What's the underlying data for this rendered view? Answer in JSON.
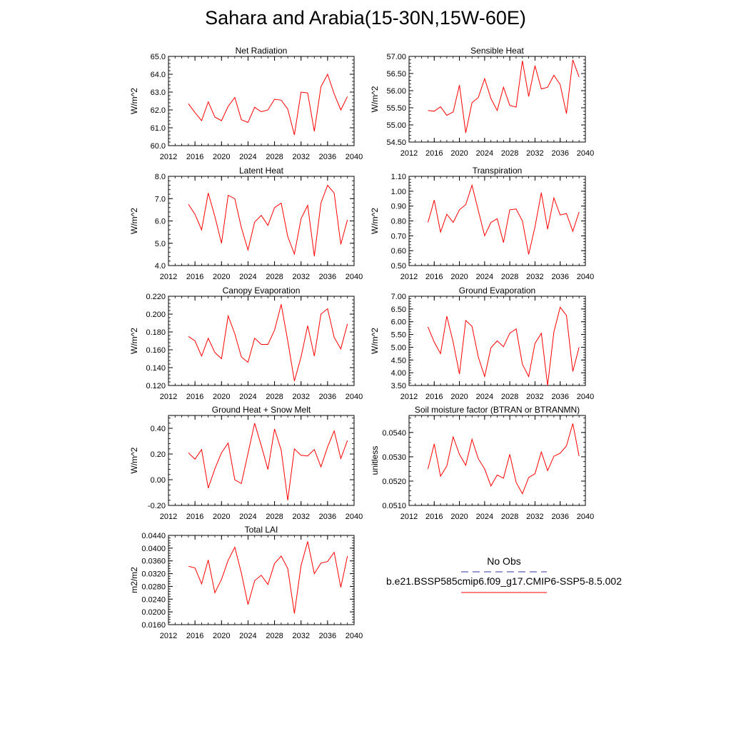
{
  "figure_title": "Sahara and Arabia(15-30N,15W-60E)",
  "legend": {
    "obs_label": "No Obs",
    "obs_color": "#3333aa",
    "model_label": "b.e21.BSSP585cmip6.f09_g17.CMIP6-SSP5-8.5.002",
    "model_color": "#ff0000"
  },
  "chart_data": [
    {
      "type": "line",
      "title": "Net Radiation",
      "ylabel": "W/m^2",
      "xlim": [
        2012,
        2040
      ],
      "x_ticks": [
        2012,
        2016,
        2020,
        2024,
        2028,
        2032,
        2036,
        2040
      ],
      "x_ticks_labels": [
        "2012",
        "2016",
        "2020",
        "2024",
        "2028",
        "2032",
        "2036",
        "2040"
      ],
      "ylim": [
        60.0,
        65.0
      ],
      "y_ticks": [
        60.0,
        61.0,
        62.0,
        63.0,
        64.0,
        65.0
      ],
      "y_ticks_labels": [
        "60.0",
        "61.0",
        "62.0",
        "63.0",
        "64.0",
        "65.0"
      ],
      "series": [
        {
          "x": [
            2015,
            2016,
            2017,
            2018,
            2019,
            2020,
            2021,
            2022,
            2023,
            2024,
            2025,
            2026,
            2027,
            2028,
            2029,
            2030,
            2031,
            2032,
            2033,
            2034,
            2035,
            2036,
            2037,
            2038,
            2039
          ],
          "values": [
            62.35,
            61.85,
            61.4,
            62.45,
            61.6,
            61.4,
            62.2,
            62.7,
            61.45,
            61.3,
            62.15,
            61.9,
            62.0,
            62.6,
            62.55,
            62.05,
            60.6,
            63.0,
            62.95,
            60.8,
            63.3,
            64.0,
            62.9,
            62.0,
            62.75
          ]
        }
      ]
    },
    {
      "type": "line",
      "title": "Sensible Heat",
      "ylabel": "W/m^2",
      "xlim": [
        2012,
        2040
      ],
      "x_ticks": [
        2012,
        2016,
        2020,
        2024,
        2028,
        2032,
        2036,
        2040
      ],
      "x_ticks_labels": [
        "2012",
        "2016",
        "2020",
        "2024",
        "2028",
        "2032",
        "2036",
        "2040"
      ],
      "ylim": [
        54.5,
        57.0
      ],
      "y_ticks": [
        54.5,
        55.0,
        55.5,
        56.0,
        56.5,
        57.0
      ],
      "y_ticks_labels": [
        "54.50",
        "55.00",
        "55.50",
        "56.00",
        "56.50",
        "57.00"
      ],
      "series": [
        {
          "x": [
            2015,
            2016,
            2017,
            2018,
            2019,
            2020,
            2021,
            2022,
            2023,
            2024,
            2025,
            2026,
            2027,
            2028,
            2029,
            2030,
            2031,
            2032,
            2033,
            2034,
            2035,
            2036,
            2037,
            2038,
            2039
          ],
          "values": [
            55.42,
            55.4,
            55.53,
            55.28,
            55.38,
            56.16,
            54.77,
            55.65,
            55.8,
            56.35,
            55.77,
            55.42,
            56.1,
            55.57,
            55.52,
            56.87,
            55.83,
            56.73,
            56.05,
            56.1,
            56.45,
            56.18,
            55.33,
            56.9,
            56.4
          ]
        }
      ]
    },
    {
      "type": "line",
      "title": "Latent Heat",
      "ylabel": "W/m^2",
      "xlim": [
        2012,
        2040
      ],
      "x_ticks": [
        2012,
        2016,
        2020,
        2024,
        2028,
        2032,
        2036,
        2040
      ],
      "x_ticks_labels": [
        "2012",
        "2016",
        "2020",
        "2024",
        "2028",
        "2032",
        "2036",
        "2040"
      ],
      "ylim": [
        4.0,
        8.0
      ],
      "y_ticks": [
        4.0,
        5.0,
        6.0,
        7.0,
        8.0
      ],
      "y_ticks_labels": [
        "4.0",
        "5.0",
        "6.0",
        "7.0",
        "8.0"
      ],
      "series": [
        {
          "x": [
            2015,
            2016,
            2017,
            2018,
            2019,
            2020,
            2021,
            2022,
            2023,
            2024,
            2025,
            2026,
            2027,
            2028,
            2029,
            2030,
            2031,
            2032,
            2033,
            2034,
            2035,
            2036,
            2037,
            2038,
            2039
          ],
          "values": [
            6.75,
            6.3,
            5.6,
            7.25,
            6.2,
            5.0,
            7.15,
            7.0,
            5.7,
            4.7,
            5.95,
            6.25,
            5.8,
            6.6,
            6.8,
            5.3,
            4.52,
            6.1,
            6.7,
            4.42,
            6.8,
            7.6,
            7.25,
            4.95,
            6.05
          ]
        }
      ]
    },
    {
      "type": "line",
      "title": "Transpiration",
      "ylabel": "W/m^2",
      "xlim": [
        2012,
        2040
      ],
      "x_ticks": [
        2012,
        2016,
        2020,
        2024,
        2028,
        2032,
        2036,
        2040
      ],
      "x_ticks_labels": [
        "2012",
        "2016",
        "2020",
        "2024",
        "2028",
        "2032",
        "2036",
        "2040"
      ],
      "ylim": [
        0.5,
        1.1
      ],
      "y_ticks": [
        0.5,
        0.6,
        0.7,
        0.8,
        0.9,
        1.0,
        1.1
      ],
      "y_ticks_labels": [
        "0.50",
        "0.60",
        "0.70",
        "0.80",
        "0.90",
        "1.00",
        "1.10"
      ],
      "series": [
        {
          "x": [
            2015,
            2016,
            2017,
            2018,
            2019,
            2020,
            2021,
            2022,
            2023,
            2024,
            2025,
            2026,
            2027,
            2028,
            2029,
            2030,
            2031,
            2032,
            2033,
            2034,
            2035,
            2036,
            2037,
            2038,
            2039
          ],
          "values": [
            0.79,
            0.94,
            0.725,
            0.845,
            0.79,
            0.875,
            0.91,
            1.04,
            0.87,
            0.7,
            0.79,
            0.815,
            0.655,
            0.875,
            0.88,
            0.8,
            0.575,
            0.76,
            0.99,
            0.745,
            0.955,
            0.84,
            0.85,
            0.73,
            0.86
          ]
        }
      ]
    },
    {
      "type": "line",
      "title": "Canopy Evaporation",
      "ylabel": "W/m^2",
      "xlim": [
        2012,
        2040
      ],
      "x_ticks": [
        2012,
        2016,
        2020,
        2024,
        2028,
        2032,
        2036,
        2040
      ],
      "x_ticks_labels": [
        "2012",
        "2016",
        "2020",
        "2024",
        "2028",
        "2032",
        "2036",
        "2040"
      ],
      "ylim": [
        0.12,
        0.22
      ],
      "y_ticks": [
        0.12,
        0.14,
        0.16,
        0.18,
        0.2,
        0.22
      ],
      "y_ticks_labels": [
        "0.120",
        "0.140",
        "0.160",
        "0.180",
        "0.200",
        "0.220"
      ],
      "series": [
        {
          "x": [
            2015,
            2016,
            2017,
            2018,
            2019,
            2020,
            2021,
            2022,
            2023,
            2024,
            2025,
            2026,
            2027,
            2028,
            2029,
            2030,
            2031,
            2032,
            2033,
            2034,
            2035,
            2036,
            2037,
            2038,
            2039
          ],
          "values": [
            0.175,
            0.17,
            0.153,
            0.173,
            0.157,
            0.15,
            0.198,
            0.178,
            0.152,
            0.146,
            0.173,
            0.166,
            0.166,
            0.182,
            0.211,
            0.17,
            0.125,
            0.152,
            0.187,
            0.153,
            0.2,
            0.206,
            0.174,
            0.161,
            0.189
          ]
        }
      ]
    },
    {
      "type": "line",
      "title": "Ground Evaporation",
      "ylabel": "W/m^2",
      "xlim": [
        2012,
        2040
      ],
      "x_ticks": [
        2012,
        2016,
        2020,
        2024,
        2028,
        2032,
        2036,
        2040
      ],
      "x_ticks_labels": [
        "2012",
        "2016",
        "2020",
        "2024",
        "2028",
        "2032",
        "2036",
        "2040"
      ],
      "ylim": [
        3.5,
        7.0
      ],
      "y_ticks": [
        3.5,
        4.0,
        4.5,
        5.0,
        5.5,
        6.0,
        6.5,
        7.0
      ],
      "y_ticks_labels": [
        "3.50",
        "4.00",
        "4.50",
        "5.00",
        "5.50",
        "6.00",
        "6.50",
        "7.00"
      ],
      "series": [
        {
          "x": [
            2015,
            2016,
            2017,
            2018,
            2019,
            2020,
            2021,
            2022,
            2023,
            2024,
            2025,
            2026,
            2027,
            2028,
            2029,
            2030,
            2031,
            2032,
            2033,
            2034,
            2035,
            2036,
            2037,
            2038,
            2039
          ],
          "values": [
            5.8,
            5.2,
            4.75,
            6.22,
            5.2,
            3.95,
            6.05,
            5.82,
            4.62,
            3.85,
            4.98,
            5.25,
            5.02,
            5.55,
            5.72,
            4.33,
            3.85,
            5.15,
            5.55,
            3.5,
            5.6,
            6.57,
            6.25,
            4.05,
            5.0
          ]
        }
      ]
    },
    {
      "type": "line",
      "title": "Ground Heat + Snow Melt",
      "ylabel": "W/m^2",
      "xlim": [
        2012,
        2040
      ],
      "x_ticks": [
        2012,
        2016,
        2020,
        2024,
        2028,
        2032,
        2036,
        2040
      ],
      "x_ticks_labels": [
        "2012",
        "2016",
        "2020",
        "2024",
        "2028",
        "2032",
        "2036",
        "2040"
      ],
      "ylim": [
        -0.2,
        0.5
      ],
      "y_ticks": [
        -0.2,
        0.0,
        0.2,
        0.4
      ],
      "y_ticks_labels": [
        "-0.20",
        "0.00",
        "0.20",
        "0.40"
      ],
      "series": [
        {
          "x": [
            2015,
            2016,
            2017,
            2018,
            2019,
            2020,
            2021,
            2022,
            2023,
            2024,
            2025,
            2026,
            2027,
            2028,
            2029,
            2030,
            2031,
            2032,
            2033,
            2034,
            2035,
            2036,
            2037,
            2038,
            2039
          ],
          "values": [
            0.21,
            0.16,
            0.235,
            -0.065,
            0.085,
            0.21,
            0.285,
            0.0,
            -0.03,
            0.205,
            0.44,
            0.265,
            0.08,
            0.395,
            0.23,
            -0.16,
            0.24,
            0.19,
            0.185,
            0.235,
            0.1,
            0.255,
            0.38,
            0.165,
            0.305
          ]
        }
      ]
    },
    {
      "type": "line",
      "title": "Soil moisture factor (BTRAN or BTRANMN)",
      "ylabel": "unitless",
      "xlim": [
        2012,
        2040
      ],
      "x_ticks": [
        2012,
        2016,
        2020,
        2024,
        2028,
        2032,
        2036,
        2040
      ],
      "x_ticks_labels": [
        "2012",
        "2016",
        "2020",
        "2024",
        "2028",
        "2032",
        "2036",
        "2040"
      ],
      "ylim": [
        0.051,
        0.0547
      ],
      "y_ticks": [
        0.051,
        0.052,
        0.053,
        0.054
      ],
      "y_ticks_labels": [
        "0.0510",
        "0.0520",
        "0.0530",
        "0.0540"
      ],
      "series": [
        {
          "x": [
            2015,
            2016,
            2017,
            2018,
            2019,
            2020,
            2021,
            2022,
            2023,
            2024,
            2025,
            2026,
            2027,
            2028,
            2029,
            2030,
            2031,
            2032,
            2033,
            2034,
            2035,
            2036,
            2037,
            2038,
            2039
          ],
          "values": [
            0.0525,
            0.05353,
            0.0522,
            0.05262,
            0.05382,
            0.0531,
            0.05265,
            0.05372,
            0.05292,
            0.0525,
            0.0518,
            0.05225,
            0.05212,
            0.0531,
            0.05195,
            0.05148,
            0.05215,
            0.0523,
            0.0532,
            0.05243,
            0.05302,
            0.05315,
            0.05345,
            0.05437,
            0.05303
          ]
        }
      ]
    },
    {
      "type": "line",
      "title": "Total LAI",
      "ylabel": "m2/m2",
      "xlim": [
        2012,
        2040
      ],
      "x_ticks": [
        2012,
        2016,
        2020,
        2024,
        2028,
        2032,
        2036,
        2040
      ],
      "x_ticks_labels": [
        "2012",
        "2016",
        "2020",
        "2024",
        "2028",
        "2032",
        "2036",
        "2040"
      ],
      "ylim": [
        0.016,
        0.044
      ],
      "y_ticks": [
        0.016,
        0.02,
        0.024,
        0.028,
        0.032,
        0.036,
        0.04,
        0.044
      ],
      "y_ticks_labels": [
        "0.0160",
        "0.0200",
        "0.0240",
        "0.0280",
        "0.0320",
        "0.0360",
        "0.0400",
        "0.0440"
      ],
      "series": [
        {
          "x": [
            2015,
            2016,
            2017,
            2018,
            2019,
            2020,
            2021,
            2022,
            2023,
            2024,
            2025,
            2026,
            2027,
            2028,
            2029,
            2030,
            2031,
            2032,
            2033,
            2034,
            2035,
            2036,
            2037,
            2038,
            2039
          ],
          "values": [
            0.0343,
            0.0338,
            0.0288,
            0.0363,
            0.026,
            0.0302,
            0.0362,
            0.0403,
            0.0322,
            0.0223,
            0.0298,
            0.0315,
            0.0286,
            0.0352,
            0.0375,
            0.0336,
            0.0195,
            0.0345,
            0.0421,
            0.032,
            0.0353,
            0.0358,
            0.0387,
            0.0277,
            0.0375
          ]
        }
      ]
    }
  ]
}
